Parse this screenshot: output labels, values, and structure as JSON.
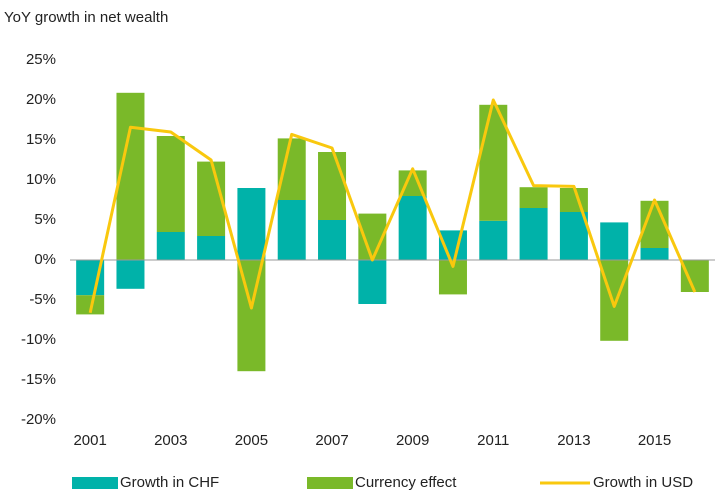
{
  "chart_data": {
    "type": "bar-line",
    "title": "YoY growth in net wealth",
    "categories": [
      "2001",
      null,
      "2003",
      null,
      "2005",
      null,
      "2007",
      null,
      "2009",
      null,
      "2011",
      null,
      "2013",
      null,
      "2015",
      null
    ],
    "series": [
      {
        "name": "Growth in CHF",
        "type": "bar",
        "color": "#00b2a9",
        "values": [
          -4.4,
          -3.6,
          3.5,
          3.0,
          9.0,
          7.5,
          5.0,
          -5.5,
          8.0,
          3.7,
          4.9,
          6.5,
          6.0,
          4.7,
          1.5,
          0
        ]
      },
      {
        "name": "Currency effect",
        "type": "bar",
        "color": "#7ab929",
        "values": [
          -2.4,
          20.9,
          12.0,
          9.3,
          -13.9,
          7.7,
          8.5,
          5.8,
          3.2,
          -4.3,
          14.5,
          2.6,
          3.0,
          -10.1,
          5.9,
          -4.0
        ]
      },
      {
        "name": "Growth in USD",
        "type": "line",
        "color": "#f9c80e",
        "values": [
          -6.6,
          16.6,
          16.0,
          12.5,
          -6.0,
          15.7,
          14.0,
          0,
          11.4,
          -0.8,
          20.0,
          9.3,
          9.2,
          -5.8,
          7.5,
          -4.0
        ]
      }
    ],
    "stacked": true,
    "ylim": [
      -20,
      25
    ],
    "yticks": [
      {
        "value": -20,
        "label": "-20%"
      },
      {
        "value": -15,
        "label": "-15%"
      },
      {
        "value": -10,
        "label": "-10%"
      },
      {
        "value": -5,
        "label": "-5%"
      },
      {
        "value": 0,
        "label": "0%"
      },
      {
        "value": 5,
        "label": "5%"
      },
      {
        "value": 10,
        "label": "10%"
      },
      {
        "value": 15,
        "label": "15%"
      },
      {
        "value": 20,
        "label": "20%"
      },
      {
        "value": 25,
        "label": "25%"
      }
    ],
    "grid": false,
    "legend": "bottom"
  }
}
